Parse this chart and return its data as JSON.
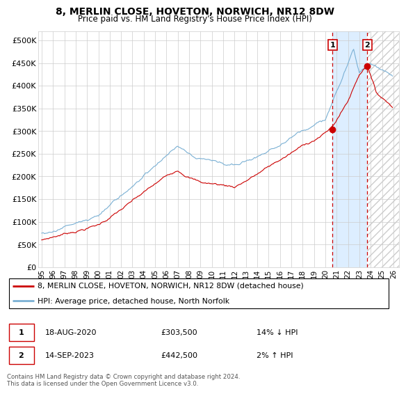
{
  "title": "8, MERLIN CLOSE, HOVETON, NORWICH, NR12 8DW",
  "subtitle": "Price paid vs. HM Land Registry's House Price Index (HPI)",
  "ylabel_ticks": [
    "£0",
    "£50K",
    "£100K",
    "£150K",
    "£200K",
    "£250K",
    "£300K",
    "£350K",
    "£400K",
    "£450K",
    "£500K"
  ],
  "ylim": [
    0,
    520000
  ],
  "xlim_start": 1994.7,
  "xlim_end": 2026.5,
  "transaction1_year": 2020.63,
  "transaction1_price": 303500,
  "transaction2_year": 2023.71,
  "transaction2_price": 442500,
  "legend_label1": "8, MERLIN CLOSE, HOVETON, NORWICH, NR12 8DW (detached house)",
  "legend_label2": "HPI: Average price, detached house, North Norfolk",
  "copyright": "Contains HM Land Registry data © Crown copyright and database right 2024.\nThis data is licensed under the Open Government Licence v3.0.",
  "line1_color": "#cc0000",
  "line2_color": "#7ab0d4",
  "vline_color": "#cc0000",
  "grid_color": "#cccccc",
  "shade_color": "#ddeeff",
  "hatch_color": "#cccccc",
  "box_edge_color": "#cc0000",
  "background_color": "#ffffff"
}
